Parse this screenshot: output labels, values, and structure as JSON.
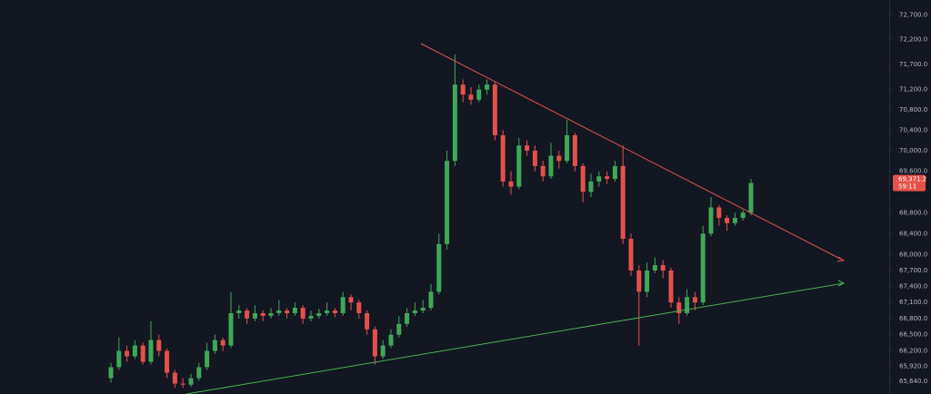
{
  "chart_data": {
    "type": "candlestick",
    "log_scale": true,
    "up_color": "#3fa857",
    "down_color": "#e4514a",
    "ylim": [
      65410,
      73000
    ],
    "yticks": [
      {
        "value": 72700,
        "label": "72,700.0"
      },
      {
        "value": 72200,
        "label": "72,200.0"
      },
      {
        "value": 71700,
        "label": "71,700.0"
      },
      {
        "value": 71200,
        "label": "71,200.0"
      },
      {
        "value": 70800,
        "label": "70,800.0"
      },
      {
        "value": 70400,
        "label": "70,400.0"
      },
      {
        "value": 70000,
        "label": "70,000.0"
      },
      {
        "value": 69600,
        "label": "69,600.0"
      },
      {
        "value": 68800,
        "label": "68,800.0"
      },
      {
        "value": 68400,
        "label": "68,400.0"
      },
      {
        "value": 68000,
        "label": "68,000.0"
      },
      {
        "value": 67700,
        "label": "67,700.0"
      },
      {
        "value": 67400,
        "label": "67,400.0"
      },
      {
        "value": 67100,
        "label": "67,100.0"
      },
      {
        "value": 66800,
        "label": "66,800.0"
      },
      {
        "value": 66500,
        "label": "66,500.0"
      },
      {
        "value": 66200,
        "label": "66,200.0"
      },
      {
        "value": 65920,
        "label": "65,920.0"
      },
      {
        "value": 65640,
        "label": "65,640.0"
      }
    ],
    "last_price_label": "69,371.2",
    "countdown": "59:11",
    "open": [
      65700,
      65900,
      66200,
      66100,
      66300,
      66000,
      66400,
      66200,
      65800,
      65600,
      65580,
      65700,
      65900,
      66200,
      66400,
      66300,
      66900,
      66950,
      66800,
      66900,
      66850,
      66900,
      66950,
      66900,
      67000,
      66800,
      66850,
      66900,
      66950,
      66900,
      67200,
      67100,
      66900,
      66600,
      66100,
      66300,
      66500,
      66700,
      66900,
      66950,
      67000,
      67300,
      68200,
      69800,
      71300,
      71100,
      71000,
      71200,
      71300,
      70300,
      69400,
      69300,
      70100,
      70000,
      69700,
      69500,
      69900,
      69800,
      70300,
      69700,
      69200,
      69400,
      69500,
      69450,
      69700,
      68300,
      67700,
      67300,
      67700,
      67800,
      67700,
      67100,
      66900,
      67200,
      67100,
      68400,
      68900,
      68700,
      68600,
      68700,
      68800
    ],
    "high": [
      65980,
      66450,
      66300,
      66400,
      66350,
      66750,
      66500,
      66250,
      65850,
      65700,
      65780,
      65980,
      66350,
      66500,
      66450,
      67300,
      67050,
      67000,
      67050,
      66950,
      67000,
      67150,
      67000,
      67100,
      67050,
      66950,
      66980,
      67100,
      67000,
      67300,
      67250,
      67150,
      66950,
      66650,
      66400,
      66600,
      66850,
      67000,
      67100,
      67150,
      67450,
      68400,
      70000,
      71900,
      71400,
      71250,
      71300,
      71400,
      71350,
      70400,
      69600,
      70250,
      70200,
      70100,
      69800,
      70150,
      70000,
      70600,
      70350,
      69750,
      69550,
      69600,
      69600,
      69800,
      70100,
      68400,
      67800,
      67850,
      67950,
      67900,
      67750,
      67200,
      67350,
      67300,
      68550,
      69100,
      68950,
      68750,
      68800,
      68850,
      69450
    ],
    "low": [
      65620,
      65850,
      66000,
      66050,
      65950,
      65950,
      66100,
      65700,
      65520,
      65520,
      65540,
      65650,
      65850,
      66150,
      66200,
      66250,
      66800,
      66700,
      66750,
      66750,
      66800,
      66850,
      66800,
      66850,
      66700,
      66750,
      66800,
      66850,
      66820,
      66850,
      66950,
      66800,
      66500,
      65950,
      66050,
      66250,
      66450,
      66650,
      66850,
      66900,
      66950,
      67250,
      68100,
      69700,
      70950,
      70900,
      70950,
      71100,
      70200,
      69300,
      69150,
      69250,
      69900,
      69600,
      69400,
      69450,
      69650,
      69750,
      69600,
      69000,
      69100,
      69300,
      69350,
      69400,
      68200,
      67600,
      66300,
      67200,
      67650,
      67550,
      67000,
      66700,
      66850,
      66950,
      67050,
      68350,
      68550,
      68450,
      68550,
      68650,
      68750
    ],
    "close": [
      65900,
      66200,
      66100,
      66300,
      66000,
      66400,
      66200,
      65800,
      65600,
      65580,
      65700,
      65900,
      66200,
      66400,
      66300,
      66900,
      66950,
      66800,
      66900,
      66850,
      66900,
      66950,
      66900,
      67000,
      66800,
      66850,
      66900,
      66950,
      66900,
      67200,
      67100,
      66900,
      66600,
      66100,
      66300,
      66500,
      66700,
      66900,
      66950,
      67000,
      67300,
      68200,
      69800,
      71300,
      71100,
      71000,
      71200,
      71300,
      70300,
      69400,
      69300,
      70100,
      70000,
      69700,
      69500,
      69900,
      69800,
      70300,
      69700,
      69200,
      69400,
      69500,
      69450,
      69700,
      68300,
      67700,
      67300,
      67700,
      67800,
      67700,
      67100,
      66900,
      67200,
      67100,
      68400,
      68900,
      68700,
      68600,
      68700,
      68800,
      69371.2
    ]
  }
}
